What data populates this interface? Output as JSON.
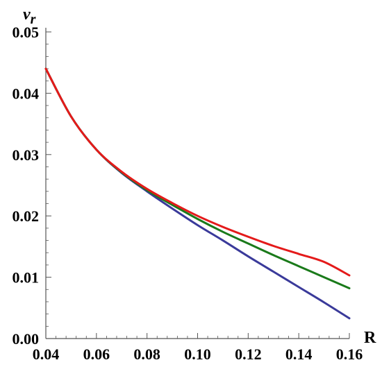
{
  "chart_data": {
    "type": "line",
    "title": "",
    "xlabel": "R",
    "ylabel": {
      "base": "v",
      "subscript": "r"
    },
    "xlim": [
      0.04,
      0.16
    ],
    "ylim": [
      0.0,
      0.05
    ],
    "x_ticks": [
      0.04,
      0.06,
      0.08,
      0.1,
      0.12,
      0.14,
      0.16
    ],
    "x_tick_labels": [
      "0.04",
      "0.06",
      "0.08",
      "0.10",
      "0.12",
      "0.14",
      "0.16"
    ],
    "y_ticks": [
      0.0,
      0.01,
      0.02,
      0.03,
      0.04,
      0.05
    ],
    "y_tick_labels": [
      "0.00",
      "0.01",
      "0.02",
      "0.03",
      "0.04",
      "0.05"
    ],
    "grid": false,
    "legend": "none",
    "x": [
      0.04,
      0.05,
      0.06,
      0.07,
      0.08,
      0.09,
      0.1,
      0.11,
      0.12,
      0.13,
      0.14,
      0.15,
      0.16
    ],
    "series": [
      {
        "color": "#3a3a9a",
        "values": [
          0.044,
          0.0362,
          0.0308,
          0.027,
          0.024,
          0.0212,
          0.0185,
          0.016,
          0.0134,
          0.0109,
          0.0084,
          0.0059,
          0.0033
        ]
      },
      {
        "color": "#1a7a1a",
        "values": [
          0.044,
          0.0362,
          0.0308,
          0.0271,
          0.0242,
          0.0218,
          0.0195,
          0.0174,
          0.0155,
          0.0136,
          0.0118,
          0.01,
          0.0082
        ]
      },
      {
        "color": "#e41a1a",
        "values": [
          0.044,
          0.0362,
          0.0308,
          0.0272,
          0.0244,
          0.0221,
          0.02,
          0.0182,
          0.0166,
          0.0151,
          0.0138,
          0.0125,
          0.0103
        ]
      }
    ]
  }
}
